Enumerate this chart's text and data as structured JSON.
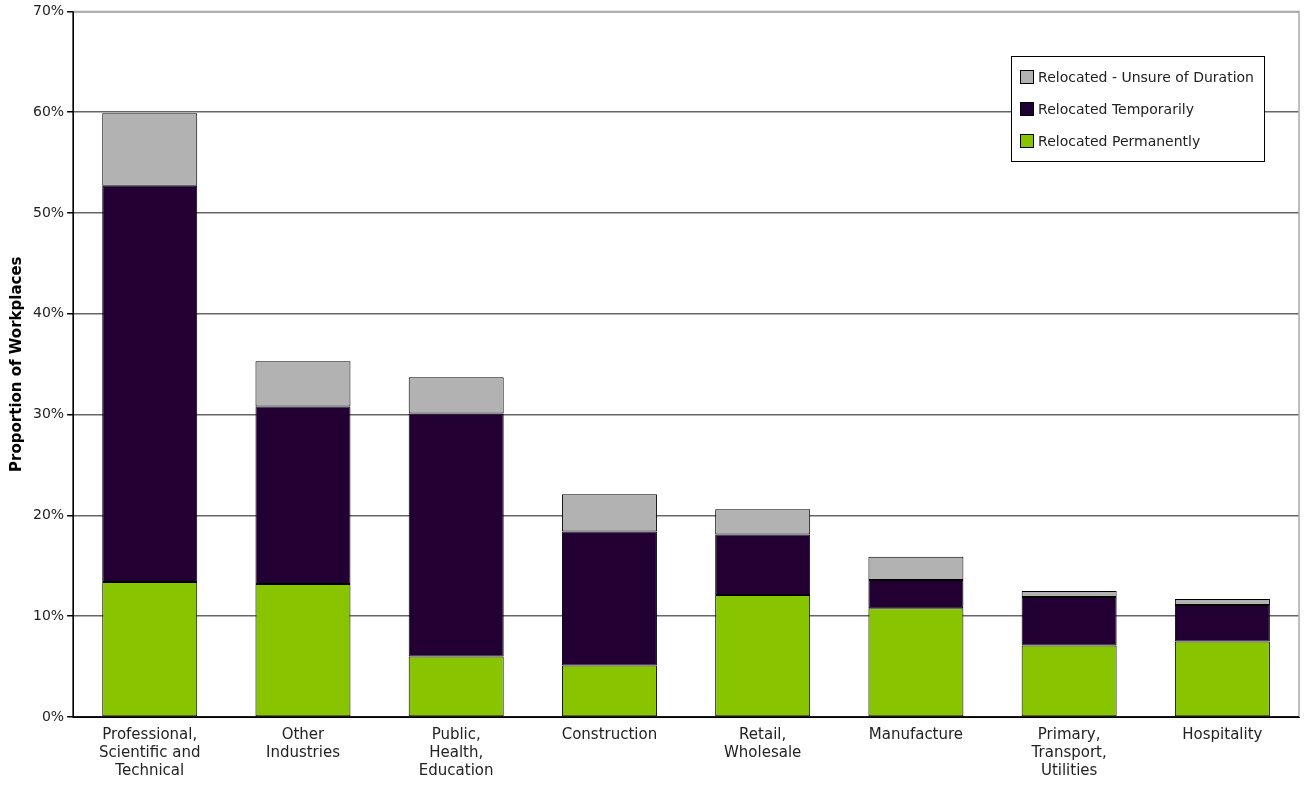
{
  "chart_data": {
    "type": "bar",
    "stacked": true,
    "ylabel": "Proportion of Workplaces",
    "categories": [
      "Professional, Scientific and Technical",
      "Other Industries",
      "Public, Health, Education",
      "Construction",
      "Retail, Wholesale",
      "Manufacture",
      "Primary, Transport, Utilities",
      "Hospitality"
    ],
    "series": [
      {
        "name": "Relocated Permanently",
        "color": "#88c400",
        "values": [
          13.4,
          13.2,
          6.0,
          5.1,
          12.1,
          10.8,
          7.1,
          7.5
        ]
      },
      {
        "name": "Relocated Temporarily",
        "color": "#220033",
        "values": [
          39.3,
          17.6,
          24.1,
          13.3,
          6.0,
          2.8,
          4.8,
          3.6
        ]
      },
      {
        "name": "Relocated - Unsure of Duration",
        "color": "#b2b2b2",
        "values": [
          7.2,
          4.5,
          3.6,
          3.7,
          2.5,
          2.3,
          0.6,
          0.6
        ]
      }
    ],
    "ylim": [
      0,
      70
    ],
    "yticks": [
      {
        "value": 0,
        "label": "0%"
      },
      {
        "value": 10,
        "label": "10%"
      },
      {
        "value": 20,
        "label": "20%"
      },
      {
        "value": 30,
        "label": "30%"
      },
      {
        "value": 40,
        "label": "40%"
      },
      {
        "value": 50,
        "label": "50%"
      },
      {
        "value": 60,
        "label": "60%"
      },
      {
        "value": 70,
        "label": "70%"
      }
    ],
    "grid": "y",
    "legend": "top right"
  }
}
